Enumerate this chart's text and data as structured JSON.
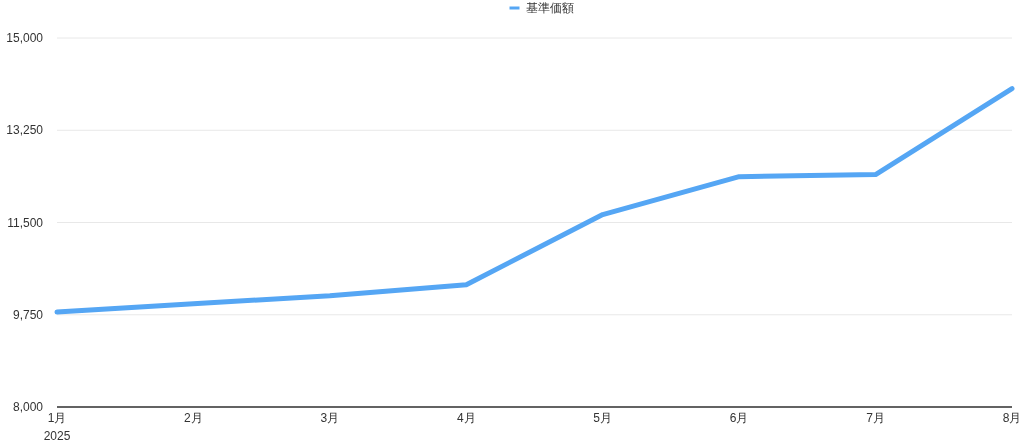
{
  "chart_data": {
    "type": "line",
    "categories": [
      "1月",
      "2月",
      "3月",
      "4月",
      "5月",
      "6月",
      "7月",
      "8月"
    ],
    "series": [
      {
        "name": "基準価額",
        "color": "#55a6f4",
        "values": [
          9800,
          9960,
          10110,
          10320,
          11650,
          12370,
          12410,
          14040
        ]
      }
    ],
    "ylim": [
      8000,
      15000
    ],
    "yticks": [
      {
        "value": 8000,
        "label": "8,000"
      },
      {
        "value": 9750,
        "label": "9,750"
      },
      {
        "value": 11500,
        "label": "11,500"
      },
      {
        "value": 13250,
        "label": "13,250"
      },
      {
        "value": 15000,
        "label": "15,000"
      }
    ],
    "grid": "y",
    "legend": "top",
    "marker": "none",
    "line_style": "solid",
    "annotations": [
      "2025"
    ]
  }
}
